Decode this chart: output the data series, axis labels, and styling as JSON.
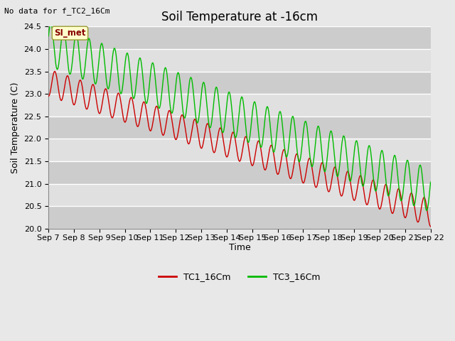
{
  "title": "Soil Temperature at -16cm",
  "xlabel": "Time",
  "ylabel": "Soil Temperature (C)",
  "top_left_text": "No data for f_TC2_16Cm",
  "annotation_box": "SI_met",
  "ylim": [
    20.0,
    24.5
  ],
  "yticks": [
    20.0,
    20.5,
    21.0,
    21.5,
    22.0,
    22.5,
    23.0,
    23.5,
    24.0,
    24.5
  ],
  "xtick_labels": [
    "Sep 7",
    "Sep 8",
    "Sep 9",
    "Sep 10",
    "Sep 11",
    "Sep 12",
    "Sep 13",
    "Sep 14",
    "Sep 15",
    "Sep 16",
    "Sep 17",
    "Sep 18",
    "Sep 19",
    "Sep 20",
    "Sep 21",
    "Sep 22"
  ],
  "bg_color": "#e8e8e8",
  "plot_bg_color_light": "#e0e0e0",
  "plot_bg_color_dark": "#cccccc",
  "grid_color": "#ffffff",
  "tc1_color": "#cc0000",
  "tc3_color": "#00bb00",
  "legend_tc1": "TC1_16Cm",
  "legend_tc3": "TC3_16Cm",
  "title_fontsize": 12,
  "label_fontsize": 9,
  "tick_fontsize": 8
}
